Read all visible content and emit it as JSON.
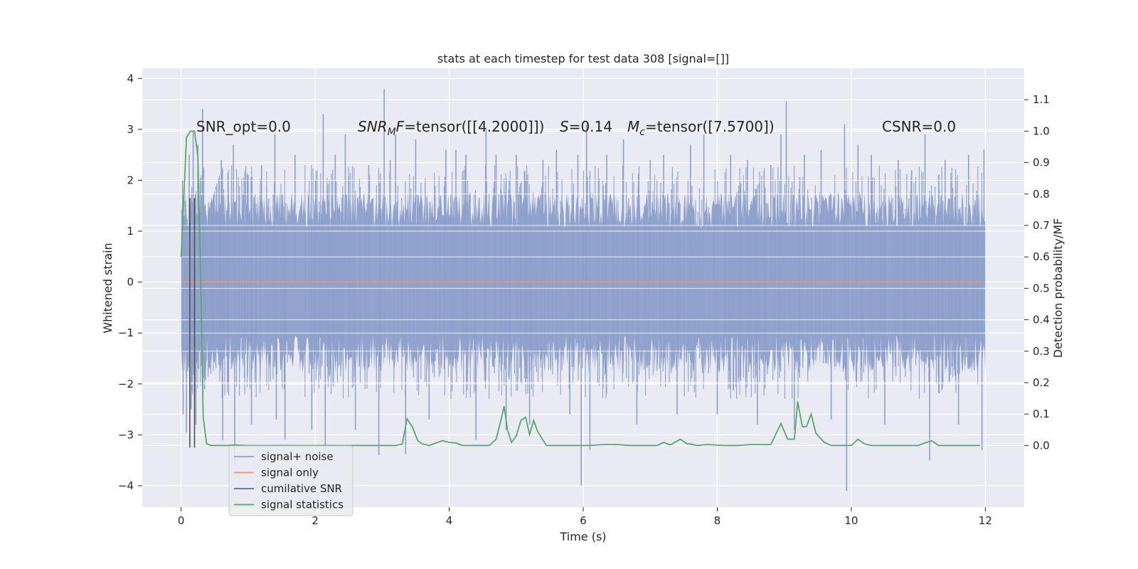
{
  "chart_data": {
    "type": "line",
    "title": "stats at each timestep for test data 308 [signal=[]]",
    "xlabel": "Time (s)",
    "ylabel": "Whitened strain",
    "ylabel_right": "Detection probability/MF",
    "xlim": [
      -0.58,
      12.58
    ],
    "ylim": [
      -4.42,
      4.2
    ],
    "ylim_right": [
      -0.196,
      1.2
    ],
    "x_ticks": [
      0,
      2,
      4,
      6,
      8,
      10,
      12
    ],
    "y_ticks": [
      4,
      3,
      2,
      1,
      0,
      -1,
      -2,
      -3,
      -4
    ],
    "y_ticks_right": [
      1.1,
      1.0,
      0.9,
      0.8,
      0.7,
      0.6,
      0.5,
      0.4,
      0.3,
      0.2,
      0.1,
      0.0
    ],
    "annotations": {
      "snr_opt": "SNR_opt=0.0",
      "snr_mf_sym": "SNR",
      "snr_mf_sub": "M",
      "snr_mf_f": "F",
      "snr_mf_value": "=tensor([[4.2000]])",
      "s_sym": "S",
      "s_value": "=0.14",
      "mc_sym": "M",
      "mc_sub": "c",
      "mc_value": "=tensor([7.5700])",
      "csnr": "CSNR=0.0"
    },
    "series": [
      {
        "name": "signal+ noise",
        "color": "#8da0cb",
        "t_start": 0,
        "t_end": 12,
        "band_typical": [
          -1.3,
          1.3
        ],
        "spikes": [
          [
            0.02,
            2.0
          ],
          [
            0.03,
            -2.6
          ],
          [
            0.06,
            1.6
          ],
          [
            0.08,
            -2.95
          ],
          [
            0.12,
            2.5
          ],
          [
            0.15,
            -2.5
          ],
          [
            0.18,
            2.95
          ],
          [
            0.22,
            -2.8
          ],
          [
            0.25,
            2.7
          ],
          [
            0.32,
            3.4
          ],
          [
            0.35,
            -2.1
          ],
          [
            0.6,
            2.4
          ],
          [
            0.62,
            -3.1
          ],
          [
            0.78,
            2.7
          ],
          [
            0.8,
            -3.6
          ],
          [
            1.0,
            2.1
          ],
          [
            1.05,
            -2.8
          ],
          [
            1.2,
            2.3
          ],
          [
            1.4,
            2.9
          ],
          [
            1.42,
            -2.7
          ],
          [
            1.55,
            -3.1
          ],
          [
            1.7,
            2.5
          ],
          [
            1.95,
            -2.9
          ],
          [
            2.12,
            3.3
          ],
          [
            2.15,
            -3.6
          ],
          [
            2.3,
            2.5
          ],
          [
            2.45,
            2.9
          ],
          [
            2.6,
            -2.9
          ],
          [
            2.8,
            2.3
          ],
          [
            2.95,
            -3.4
          ],
          [
            3.03,
            3.8
          ],
          [
            3.12,
            2.4
          ],
          [
            3.2,
            2.9
          ],
          [
            3.35,
            -3.38
          ],
          [
            3.5,
            2.8
          ],
          [
            3.7,
            -2.7
          ],
          [
            3.95,
            2.6
          ],
          [
            4.1,
            2.6
          ],
          [
            4.25,
            2.5
          ],
          [
            4.4,
            -3.1
          ],
          [
            4.55,
            3.0
          ],
          [
            4.7,
            2.5
          ],
          [
            4.85,
            -2.9
          ],
          [
            5.0,
            2.5
          ],
          [
            5.2,
            -2.8
          ],
          [
            5.4,
            2.4
          ],
          [
            5.6,
            2.6
          ],
          [
            5.8,
            -2.6
          ],
          [
            5.92,
            2.5
          ],
          [
            5.97,
            -4.0
          ],
          [
            6.05,
            3.1
          ],
          [
            6.1,
            -3.3
          ],
          [
            6.35,
            2.5
          ],
          [
            6.6,
            2.8
          ],
          [
            6.8,
            -2.8
          ],
          [
            7.0,
            2.4
          ],
          [
            7.2,
            2.5
          ],
          [
            7.4,
            -2.6
          ],
          [
            7.6,
            2.7
          ],
          [
            7.8,
            2.9
          ],
          [
            8.0,
            -2.6
          ],
          [
            8.2,
            2.5
          ],
          [
            8.45,
            2.4
          ],
          [
            8.6,
            -2.8
          ],
          [
            8.8,
            2.3
          ],
          [
            8.95,
            2.9
          ],
          [
            9.03,
            3.55
          ],
          [
            9.15,
            -2.9
          ],
          [
            9.3,
            2.5
          ],
          [
            9.55,
            2.6
          ],
          [
            9.7,
            -2.7
          ],
          [
            9.9,
            3.1
          ],
          [
            9.93,
            -4.1
          ],
          [
            10.1,
            2.7
          ],
          [
            10.3,
            2.5
          ],
          [
            10.5,
            -2.8
          ],
          [
            10.7,
            2.4
          ],
          [
            10.9,
            2.2
          ],
          [
            11.1,
            2.9
          ],
          [
            11.17,
            -3.5
          ],
          [
            11.4,
            2.4
          ],
          [
            11.6,
            -2.8
          ],
          [
            11.75,
            2.5
          ],
          [
            11.95,
            -3.3
          ],
          [
            11.98,
            2.6
          ]
        ]
      },
      {
        "name": "signal only",
        "color": "#e5967e",
        "x": [
          0,
          12
        ],
        "y": [
          0,
          0
        ]
      },
      {
        "name": "cumilative SNR",
        "color": "#4c72b0",
        "x": [],
        "y": []
      },
      {
        "name": "signal statistics",
        "color": "#55a868",
        "axis": "right",
        "x": [
          0.0,
          0.08,
          0.14,
          0.2,
          0.25,
          0.29,
          0.33,
          0.38,
          0.45,
          0.55,
          0.7,
          0.8,
          1.0,
          1.2,
          1.5,
          2.0,
          2.2,
          2.3,
          2.5,
          2.8,
          3.1,
          3.2,
          3.3,
          3.37,
          3.45,
          3.53,
          3.6,
          3.7,
          3.8,
          3.9,
          4.0,
          4.1,
          4.2,
          4.4,
          4.6,
          4.7,
          4.76,
          4.82,
          4.87,
          4.93,
          5.0,
          5.07,
          5.14,
          5.2,
          5.26,
          5.32,
          5.39,
          5.45,
          5.55,
          5.7,
          5.9,
          6.1,
          6.3,
          6.5,
          6.7,
          6.9,
          7.1,
          7.2,
          7.3,
          7.45,
          7.55,
          7.6,
          7.7,
          7.85,
          8.1,
          8.3,
          8.5,
          8.8,
          8.95,
          9.05,
          9.15,
          9.2,
          9.27,
          9.33,
          9.4,
          9.47,
          9.53,
          9.6,
          9.7,
          9.85,
          10.0,
          10.1,
          10.2,
          10.3,
          10.4,
          10.6,
          10.9,
          11.0,
          11.12,
          11.2,
          11.3,
          11.5,
          11.7,
          11.92
        ],
        "y": [
          0.6,
          0.98,
          1.0,
          1.0,
          0.92,
          0.55,
          0.09,
          0.005,
          0.0,
          0.0,
          0.0,
          0.002,
          0.0,
          0.0,
          0.0,
          0.0,
          0.0,
          0.0,
          0.0,
          0.0,
          0.0,
          0.0,
          0.005,
          0.085,
          0.06,
          0.015,
          0.005,
          0.0,
          0.008,
          0.015,
          0.01,
          0.008,
          0.0,
          0.0,
          0.0,
          0.02,
          0.07,
          0.125,
          0.05,
          0.01,
          0.03,
          0.08,
          0.09,
          0.035,
          0.08,
          0.045,
          0.02,
          0.0,
          0.0,
          0.0,
          0.0,
          0.0,
          0.003,
          0.003,
          0.0,
          0.0,
          0.0,
          0.01,
          0.002,
          0.02,
          0.005,
          0.005,
          0.0,
          0.003,
          0.0,
          0.0,
          0.003,
          0.003,
          0.07,
          0.02,
          0.02,
          0.14,
          0.06,
          0.06,
          0.1,
          0.04,
          0.025,
          0.01,
          0.0,
          0.0,
          0.0,
          0.02,
          0.005,
          0.0,
          0.0,
          0.0,
          0.0,
          0.0,
          0.01,
          0.015,
          0.0,
          0.0,
          0.0,
          0.0
        ]
      }
    ],
    "vertical_markers": {
      "color": "#505050",
      "x": [
        0.13,
        0.2
      ]
    },
    "legend": {
      "position": "lower-left",
      "entries": [
        {
          "label": "signal+ noise",
          "color": "#8da0cb"
        },
        {
          "label": "signal only",
          "color": "#e5967e"
        },
        {
          "label": "cumilative SNR",
          "color": "#4c72b0"
        },
        {
          "label": "signal statistics",
          "color": "#55a868"
        }
      ]
    },
    "grid": true,
    "background": "#eaeaf2"
  }
}
